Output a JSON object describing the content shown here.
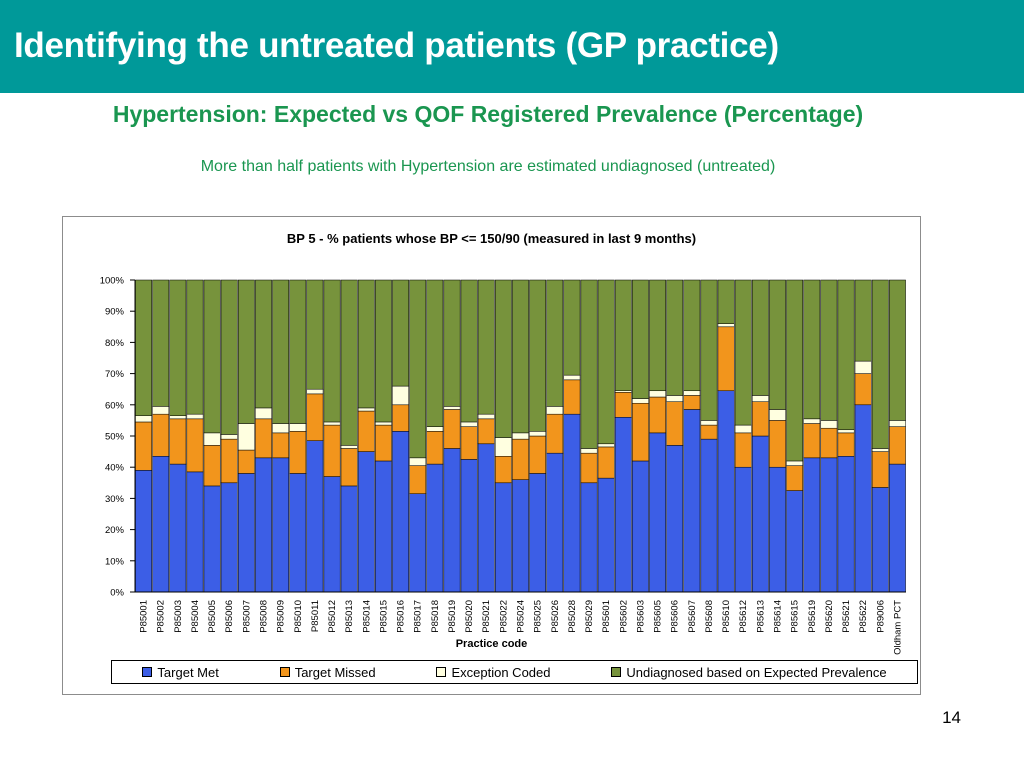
{
  "slide": {
    "title": "Identifying the untreated patients (GP practice)",
    "subtitle": "Hypertension: Expected vs QOF Registered Prevalence (Percentage)",
    "note": "More than half patients with Hypertension are estimated undiagnosed (untreated)",
    "page_number": "14"
  },
  "chart_data": {
    "type": "bar",
    "stacked": true,
    "title": "BP 5 - % patients whose BP <= 150/90 (measured in last 9 months)",
    "xlabel": "Practice code",
    "ylabel": "",
    "ylim": [
      0,
      100
    ],
    "yticks": [
      "0%",
      "10%",
      "20%",
      "30%",
      "40%",
      "50%",
      "60%",
      "70%",
      "80%",
      "90%",
      "100%"
    ],
    "grid": false,
    "legend_position": "bottom",
    "categories": [
      "P85001",
      "P85002",
      "P85003",
      "P85004",
      "P85005",
      "P85006",
      "P85007",
      "P85008",
      "P85009",
      "P85010",
      "P85011",
      "P85012",
      "P85013",
      "P85014",
      "P85015",
      "P85016",
      "P85017",
      "P85018",
      "P85019",
      "P85020",
      "P85021",
      "P85022",
      "P85024",
      "P85025",
      "P85026",
      "P85028",
      "P85029",
      "P85601",
      "P85602",
      "P85603",
      "P85605",
      "P85606",
      "P85607",
      "P85608",
      "P85610",
      "P85612",
      "P85613",
      "P85614",
      "P85615",
      "P85619",
      "P85620",
      "P85621",
      "P85622",
      "P89006",
      "Oldham PCT"
    ],
    "series": [
      {
        "name": "Target Met",
        "color": "#3c5ee6",
        "values": [
          39,
          43.5,
          41,
          38.5,
          34,
          35,
          38,
          43,
          43,
          38,
          48.5,
          37,
          34,
          45,
          42,
          51.5,
          31.5,
          41,
          46,
          42.5,
          47.5,
          35,
          36,
          38,
          44.5,
          57,
          35,
          36.5,
          56,
          42,
          51,
          47,
          58.5,
          49,
          64.5,
          40,
          50,
          40,
          32.5,
          43,
          43,
          43.5,
          60,
          33.5,
          41
        ]
      },
      {
        "name": "Target Missed",
        "color": "#f2951c",
        "values": [
          15.5,
          13.5,
          14.5,
          17,
          13,
          14,
          7.5,
          12.5,
          8,
          13.5,
          15,
          16.5,
          12,
          13,
          11.5,
          8.5,
          9,
          10.5,
          12.5,
          10.5,
          8,
          8.5,
          13,
          12,
          12.5,
          11,
          9.5,
          10,
          8,
          18.5,
          11.5,
          14,
          4.5,
          4.5,
          20.5,
          11,
          11,
          15,
          8,
          11,
          9.5,
          7.5,
          10,
          11.5,
          12
        ]
      },
      {
        "name": "Exception Coded",
        "color": "#ffffe0",
        "values": [
          2,
          2.5,
          1,
          1.5,
          4,
          1.5,
          8.5,
          3.5,
          3,
          2.5,
          1.5,
          1,
          1,
          1,
          1,
          6,
          2.5,
          1.5,
          1,
          1.5,
          1.5,
          6,
          2,
          1.5,
          2.5,
          1.5,
          1.5,
          1,
          0.5,
          1.5,
          2,
          2,
          1.5,
          1.5,
          1,
          2.5,
          2,
          3.5,
          1.5,
          1.5,
          2.5,
          1,
          4,
          1,
          2
        ]
      },
      {
        "name": "Undiagnosed based on Expected Prevalence",
        "color": "#77933c",
        "values": [
          43.5,
          40.5,
          43.5,
          43,
          49,
          49.5,
          46,
          41,
          46,
          46,
          35,
          45.5,
          53,
          41,
          45.5,
          34,
          57,
          47,
          40.5,
          45.5,
          43,
          50.5,
          49,
          48.5,
          40.5,
          30.5,
          54,
          52.5,
          35.5,
          38,
          35.5,
          37,
          35.5,
          45,
          14,
          46.5,
          37,
          41.5,
          58,
          44.5,
          45,
          48,
          26,
          54,
          45
        ]
      }
    ]
  }
}
